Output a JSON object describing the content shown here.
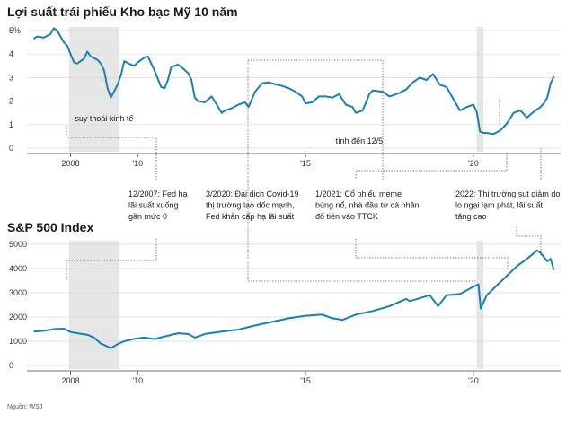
{
  "source_label": "Nguồn: WSJ",
  "chart_data": [
    {
      "type": "line",
      "title": "Lợi suất trái phiếu Kho bạc Mỹ 10 năm",
      "ylabel": "",
      "xlabel": "",
      "ylim": [
        0,
        5
      ],
      "xlim": [
        2006.7,
        2022.6
      ],
      "y_ticks": [
        0,
        1,
        2,
        3,
        4,
        5
      ],
      "y_tick_labels": [
        "0",
        "1",
        "2",
        "3",
        "4",
        "5%"
      ],
      "x_ticks": [
        2008,
        2010,
        2015,
        2020
      ],
      "x_tick_labels": [
        "2008",
        "'10",
        "'15",
        "'20"
      ],
      "shaded": [
        [
          2007.95,
          2009.45
        ],
        [
          2020.1,
          2020.3
        ]
      ],
      "annotations": [
        {
          "text": "suy thoái kinh tế",
          "x": 2009.0,
          "y": 1.15
        },
        {
          "text": "tính đến 12/5",
          "x": 2016.6,
          "y": 0.2
        }
      ],
      "series": [
        {
          "name": "Lợi suất 10 năm",
          "x": [
            2006.9,
            2007.0,
            2007.2,
            2007.4,
            2007.5,
            2007.6,
            2007.8,
            2007.9,
            2008.0,
            2008.1,
            2008.2,
            2008.4,
            2008.5,
            2008.6,
            2008.8,
            2008.9,
            2009.0,
            2009.1,
            2009.2,
            2009.4,
            2009.5,
            2009.6,
            2009.8,
            2009.9,
            2010.0,
            2010.2,
            2010.3,
            2010.5,
            2010.6,
            2010.7,
            2010.8,
            2010.9,
            2011.0,
            2011.2,
            2011.3,
            2011.5,
            2011.6,
            2011.7,
            2011.8,
            2012.0,
            2012.2,
            2012.4,
            2012.5,
            2012.6,
            2012.8,
            2013.0,
            2013.2,
            2013.3,
            2013.5,
            2013.7,
            2013.9,
            2014.0,
            2014.3,
            2014.5,
            2014.7,
            2014.9,
            2015.0,
            2015.2,
            2015.4,
            2015.6,
            2015.8,
            2016.0,
            2016.2,
            2016.4,
            2016.5,
            2016.7,
            2016.9,
            2017.0,
            2017.3,
            2017.5,
            2017.8,
            2018.0,
            2018.2,
            2018.4,
            2018.6,
            2018.8,
            2019.0,
            2019.2,
            2019.4,
            2019.6,
            2019.8,
            2020.0,
            2020.1,
            2020.2,
            2020.3,
            2020.4,
            2020.6,
            2020.8,
            2021.0,
            2021.2,
            2021.4,
            2021.6,
            2021.8,
            2022.0,
            2022.1,
            2022.2,
            2022.3,
            2022.4
          ],
          "values": [
            4.65,
            4.75,
            4.7,
            4.85,
            5.1,
            5.0,
            4.5,
            4.35,
            4.0,
            3.65,
            3.6,
            3.8,
            4.1,
            3.9,
            3.75,
            3.6,
            3.3,
            2.55,
            2.15,
            2.7,
            3.1,
            3.7,
            3.55,
            3.5,
            3.65,
            3.85,
            3.9,
            3.3,
            2.95,
            2.6,
            2.55,
            2.9,
            3.45,
            3.55,
            3.45,
            3.2,
            2.9,
            2.15,
            2.0,
            1.95,
            2.2,
            1.75,
            1.5,
            1.6,
            1.7,
            1.85,
            1.95,
            1.75,
            2.4,
            2.75,
            2.8,
            2.75,
            2.65,
            2.55,
            2.4,
            2.2,
            1.9,
            1.95,
            2.2,
            2.2,
            2.15,
            2.3,
            1.85,
            1.75,
            1.5,
            1.6,
            2.3,
            2.45,
            2.4,
            2.2,
            2.35,
            2.5,
            2.8,
            3.0,
            2.9,
            3.15,
            2.7,
            2.6,
            2.1,
            1.6,
            1.75,
            1.85,
            1.55,
            0.7,
            0.65,
            0.65,
            0.6,
            0.75,
            1.05,
            1.5,
            1.6,
            1.3,
            1.55,
            1.75,
            1.9,
            2.15,
            2.75,
            3.05
          ]
        }
      ]
    },
    {
      "type": "line",
      "title": "S&P 500 Index",
      "ylabel": "",
      "xlabel": "",
      "ylim": [
        0,
        5000
      ],
      "xlim": [
        2006.7,
        2022.6
      ],
      "y_ticks": [
        0,
        1000,
        2000,
        3000,
        4000,
        5000
      ],
      "y_tick_labels": [
        "0",
        "1000",
        "2000",
        "3000",
        "4000",
        "5000"
      ],
      "x_ticks": [
        2008,
        2010,
        2015,
        2020
      ],
      "x_tick_labels": [
        "2008",
        "'10",
        "'15",
        "'20"
      ],
      "shaded": [
        [
          2007.95,
          2009.45
        ],
        [
          2020.1,
          2020.3
        ]
      ],
      "series": [
        {
          "name": "S&P 500",
          "x": [
            2006.9,
            2007.2,
            2007.5,
            2007.8,
            2008.0,
            2008.2,
            2008.5,
            2008.7,
            2008.9,
            2009.0,
            2009.2,
            2009.4,
            2009.6,
            2009.9,
            2010.2,
            2010.5,
            2010.8,
            2011.2,
            2011.5,
            2011.7,
            2012.0,
            2012.5,
            2013.0,
            2013.5,
            2014.0,
            2014.5,
            2015.0,
            2015.5,
            2015.8,
            2016.1,
            2016.5,
            2017.0,
            2017.5,
            2018.0,
            2018.1,
            2018.7,
            2018.95,
            2019.2,
            2019.6,
            2020.0,
            2020.15,
            2020.22,
            2020.4,
            2020.7,
            2021.0,
            2021.3,
            2021.6,
            2021.9,
            2022.0,
            2022.2,
            2022.3,
            2022.4
          ],
          "values": [
            1400,
            1430,
            1500,
            1520,
            1380,
            1330,
            1270,
            1150,
            900,
            850,
            720,
            880,
            1000,
            1100,
            1150,
            1090,
            1200,
            1330,
            1300,
            1150,
            1300,
            1400,
            1480,
            1650,
            1800,
            1950,
            2050,
            2100,
            1950,
            1880,
            2100,
            2250,
            2450,
            2750,
            2650,
            2900,
            2450,
            2900,
            2950,
            3250,
            3350,
            2350,
            2900,
            3300,
            3700,
            4100,
            4400,
            4750,
            4650,
            4300,
            4400,
            3930
          ]
        }
      ]
    }
  ],
  "callouts": [
    {
      "text": "12/2007: Fed hạ lãi suất xuống gần mức 0",
      "lines": [
        "12/2007: Fed hạ",
        "lãi suất xuống",
        "gần mức 0"
      ]
    },
    {
      "text": "3/2020: Đại dịch Covid-19 thị trường lao dốc mạnh, Fed khẩn cấp hạ lãi suất",
      "lines": [
        "3/2020: Đại dịch Covid-19",
        "thị trường lao dốc mạnh,",
        "Fed khẩn cấp hạ lãi suất"
      ]
    },
    {
      "text": "1/2021: Cổ phiếu meme bùng nổ, nhà đầu tư cá nhân đổ tiền vào TTCK",
      "lines": [
        "1/2021: Cổ phiếu meme",
        "bùng nổ, nhà đầu tư cá nhân",
        "đổ tiền vào TTCK"
      ]
    },
    {
      "text": "2022: Thị trường sụt giảm do lo ngại lạm phát, lãi suất tăng cao",
      "lines": [
        "2022: Thị trường sụt giảm do",
        "lo ngại lạm phát,  lãi suất",
        "tăng cao"
      ]
    }
  ]
}
